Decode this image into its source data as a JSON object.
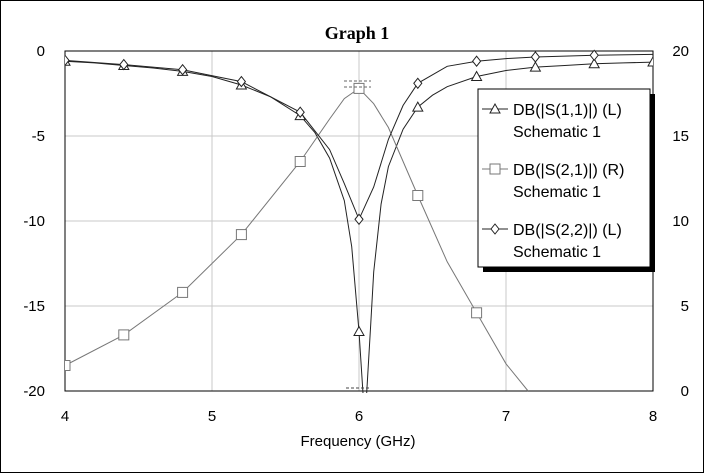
{
  "chart_data": {
    "type": "line",
    "title": "Graph 1",
    "xlabel": "Frequency (GHz)",
    "xlim": [
      4,
      8
    ],
    "ylim_left": [
      -20,
      0
    ],
    "ylim_right": [
      0,
      20
    ],
    "xticks": [
      "4",
      "5",
      "6",
      "7",
      "8"
    ],
    "yticks_left": [
      "0",
      "-5",
      "-10",
      "-15",
      "-20"
    ],
    "yticks_right": [
      "20",
      "15",
      "10",
      "5",
      "0"
    ],
    "grid": true,
    "legend_position": "right",
    "series": [
      {
        "name": "DB(|S(1,1)|) (L)",
        "source": "Schematic 1",
        "axis": "left",
        "marker": "triangle",
        "color": "#222222",
        "x": [
          4.0,
          4.2,
          4.4,
          4.6,
          4.8,
          5.0,
          5.2,
          5.4,
          5.6,
          5.7,
          5.8,
          5.9,
          5.95,
          6.0,
          6.03,
          6.05,
          6.08,
          6.1,
          6.15,
          6.2,
          6.3,
          6.4,
          6.5,
          6.6,
          6.8,
          7.0,
          7.2,
          7.4,
          7.6,
          7.8,
          8.0
        ],
        "y": [
          -0.6,
          -0.7,
          -0.85,
          -1.0,
          -1.2,
          -1.5,
          -2.0,
          -2.7,
          -3.8,
          -4.8,
          -6.3,
          -8.8,
          -11.5,
          -16.5,
          -20.5,
          -20.5,
          -16.0,
          -13.0,
          -9.0,
          -6.8,
          -4.6,
          -3.3,
          -2.6,
          -2.1,
          -1.5,
          -1.15,
          -0.95,
          -0.85,
          -0.75,
          -0.7,
          -0.65
        ]
      },
      {
        "name": "DB(|S(2,1)|) (R)",
        "source": "Schematic 1",
        "axis": "right",
        "marker": "square",
        "color": "#777777",
        "x": [
          4.0,
          4.4,
          4.8,
          5.2,
          5.6,
          5.8,
          5.9,
          6.0,
          6.1,
          6.2,
          6.4,
          6.6,
          6.8,
          7.0,
          7.15
        ],
        "y": [
          1.5,
          3.3,
          5.8,
          9.2,
          13.5,
          16.0,
          17.2,
          17.8,
          16.9,
          15.5,
          11.5,
          7.6,
          4.6,
          1.6,
          0.0
        ]
      },
      {
        "name": "DB(|S(2,2)|) (L)",
        "source": "Schematic 1",
        "axis": "left",
        "marker": "diamond",
        "color": "#222222",
        "x": [
          4.0,
          4.4,
          4.8,
          5.2,
          5.6,
          5.8,
          5.9,
          6.0,
          6.1,
          6.2,
          6.3,
          6.4,
          6.6,
          6.8,
          7.0,
          7.2,
          7.6,
          8.0
        ],
        "y": [
          -0.55,
          -0.8,
          -1.1,
          -1.8,
          -3.6,
          -5.8,
          -7.8,
          -9.9,
          -8.0,
          -5.2,
          -3.2,
          -1.9,
          -0.9,
          -0.6,
          -0.45,
          -0.35,
          -0.25,
          -0.2
        ]
      }
    ]
  }
}
